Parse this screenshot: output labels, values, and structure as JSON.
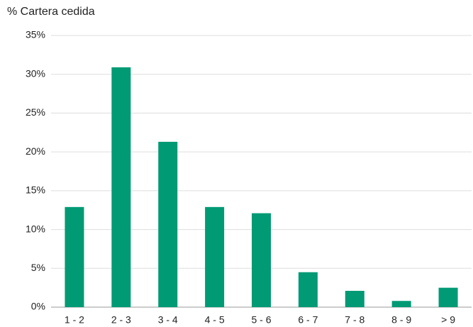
{
  "chart_data": {
    "type": "bar",
    "y_axis_label": "% Cartera cedida",
    "categories": [
      "1 - 2",
      "2 - 3",
      "3 - 4",
      "4 - 5",
      "5 - 6",
      "6 - 7",
      "7 - 8",
      "8 - 9",
      "> 9"
    ],
    "values": [
      12.9,
      30.9,
      21.3,
      12.9,
      12.1,
      4.5,
      2.1,
      0.8,
      2.5
    ],
    "color": "#009a74",
    "ylim": [
      0,
      35
    ],
    "yticks": [
      {
        "value": 0,
        "label": "0%"
      },
      {
        "value": 5,
        "label": "5%"
      },
      {
        "value": 10,
        "label": "10%"
      },
      {
        "value": 15,
        "label": "15%"
      },
      {
        "value": 20,
        "label": "20%"
      },
      {
        "value": 25,
        "label": "25%"
      },
      {
        "value": 30,
        "label": "30%"
      },
      {
        "value": 35,
        "label": "35%"
      }
    ],
    "grid": true
  }
}
